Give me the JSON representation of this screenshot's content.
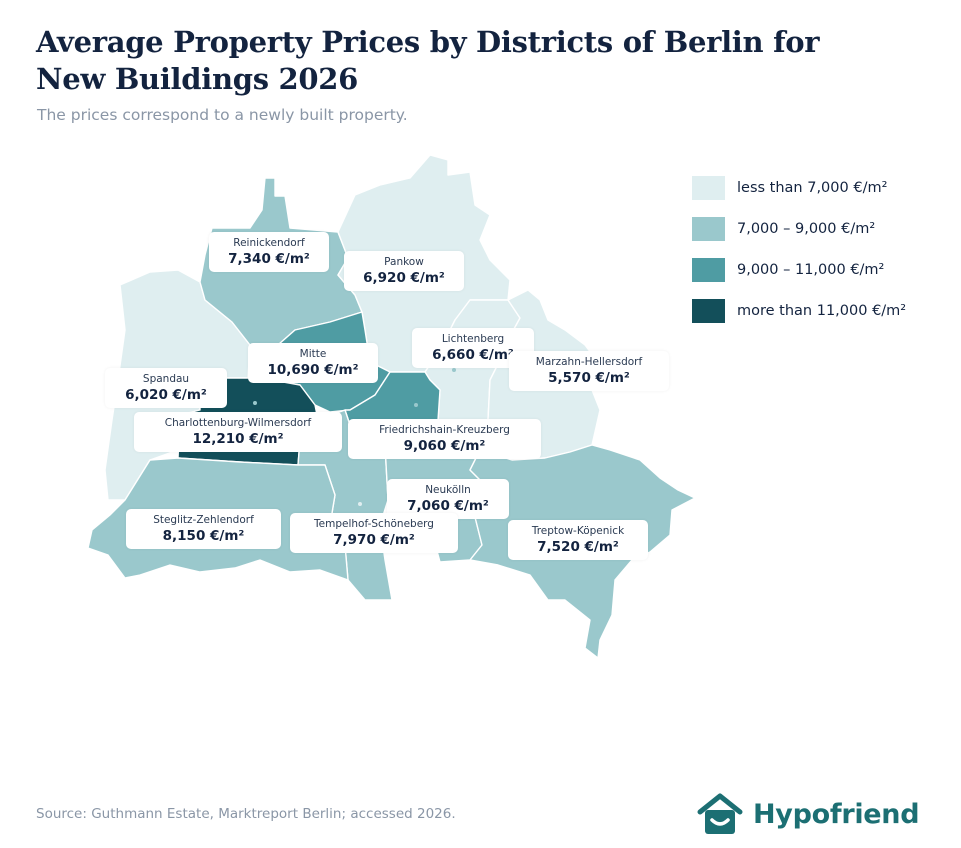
{
  "title": "Average Property Prices by Districts of Berlin for New Buildings 2026",
  "subtitle": "The prices correspond to a newly built property.",
  "legend": [
    {
      "label": "less than 7,000 €/m²",
      "color": "#dfeef0"
    },
    {
      "label": "7,000 – 9,000 €/m²",
      "color": "#9ac8cc"
    },
    {
      "label": "9,000 – 11,000 €/m²",
      "color": "#4f9ca3"
    },
    {
      "label": "more than 11,000 €/m²",
      "color": "#134f5a"
    }
  ],
  "districts": [
    {
      "name": "Reinickendorf",
      "price": "7,340 €/m²",
      "color": "#9ac8cc"
    },
    {
      "name": "Pankow",
      "price": "6,920 €/m²",
      "color": "#dfeef0"
    },
    {
      "name": "Lichtenberg",
      "price": "6,660 €/m²",
      "color": "#dfeef0"
    },
    {
      "name": "Mitte",
      "price": "10,690 €/m²",
      "color": "#4f9ca3"
    },
    {
      "name": "Marzahn-Hellersdorf",
      "price": "5,570 €/m²",
      "color": "#dfeef0"
    },
    {
      "name": "Spandau",
      "price": "6,020 €/m²",
      "color": "#dfeef0"
    },
    {
      "name": "Charlottenburg-Wilmersdorf",
      "price": "12,210 €/m²",
      "color": "#134f5a"
    },
    {
      "name": "Friedrichshain-Kreuzberg",
      "price": "9,060 €/m²",
      "color": "#4f9ca3"
    },
    {
      "name": "Neukölln",
      "price": "7,060 €/m²",
      "color": "#9ac8cc"
    },
    {
      "name": "Steglitz-Zehlendorf",
      "price": "8,150 €/m²",
      "color": "#9ac8cc"
    },
    {
      "name": "Tempelhof-Schöneberg",
      "price": "7,970 €/m²",
      "color": "#9ac8cc"
    },
    {
      "name": "Treptow-Köpenick",
      "price": "7,520 €/m²",
      "color": "#9ac8cc"
    }
  ],
  "source": "Source: Guthmann Estate, Marktreport Berlin; accessed 2026.",
  "brand": {
    "name": "Hypofriend",
    "icon": "house-smile-icon",
    "color": "#1c6f73"
  }
}
